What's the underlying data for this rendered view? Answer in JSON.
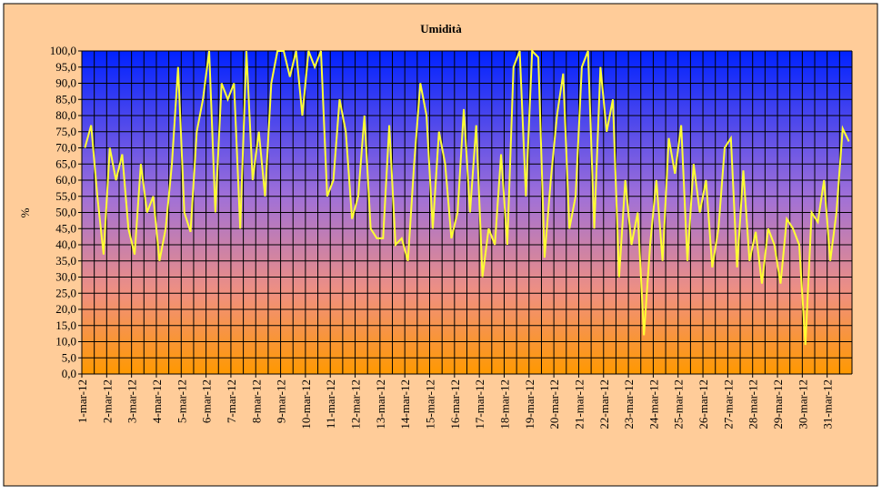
{
  "chart_data": {
    "type": "line",
    "title": "Umidità",
    "y_label": "%",
    "categories": [
      "1-mar-12",
      null,
      null,
      null,
      "2-mar-12",
      null,
      null,
      null,
      "3-mar-12",
      null,
      null,
      null,
      "4-mar-12",
      null,
      null,
      null,
      "5-mar-12",
      null,
      null,
      null,
      "6-mar-12",
      null,
      null,
      null,
      "7-mar-12",
      null,
      null,
      null,
      "8-mar-12",
      null,
      null,
      null,
      "9-mar-12",
      null,
      null,
      null,
      "10-mar-12",
      null,
      null,
      null,
      "11-mar-12",
      null,
      null,
      null,
      "12-mar-12",
      null,
      null,
      null,
      "13-mar-12",
      null,
      null,
      null,
      "14-mar-12",
      null,
      null,
      null,
      "15-mar-12",
      null,
      null,
      null,
      "16-mar-12",
      null,
      null,
      null,
      "17-mar-12",
      null,
      null,
      null,
      "18-mar-12",
      null,
      null,
      null,
      "19-mar-12",
      null,
      null,
      null,
      "20-mar-12",
      null,
      null,
      null,
      "21-mar-12",
      null,
      null,
      null,
      "22-mar-12",
      null,
      null,
      null,
      "23-mar-12",
      null,
      null,
      null,
      "24-mar-12",
      null,
      null,
      null,
      "25-mar-12",
      null,
      null,
      null,
      "26-mar-12",
      null,
      null,
      null,
      "27-mar-12",
      null,
      null,
      null,
      "28-mar-12",
      null,
      null,
      null,
      "29-mar-12",
      null,
      null,
      null,
      "30-mar-12",
      null,
      null,
      null,
      "31-mar-12",
      null,
      null,
      null
    ],
    "series": [
      {
        "name": "Umidità",
        "color": "#ffff33",
        "values": [
          70,
          77,
          55,
          37,
          70,
          60,
          68,
          45,
          37,
          65,
          50,
          55,
          35,
          45,
          65,
          95,
          50,
          44,
          75,
          85,
          100,
          50,
          90,
          85,
          90,
          45,
          100,
          60,
          75,
          55,
          90,
          100,
          100,
          92,
          100,
          80,
          100,
          95,
          100,
          55,
          60,
          85,
          75,
          48,
          55,
          80,
          45,
          42,
          42,
          77,
          40,
          42,
          35,
          65,
          90,
          80,
          45,
          75,
          65,
          42,
          50,
          82,
          50,
          77,
          30,
          45,
          40,
          68,
          40,
          95,
          100,
          55,
          100,
          98,
          36,
          60,
          80,
          93,
          45,
          55,
          95,
          100,
          45,
          95,
          75,
          85,
          30,
          60,
          40,
          50,
          12,
          40,
          60,
          35,
          73,
          62,
          77,
          35,
          65,
          50,
          60,
          33,
          45,
          70,
          73,
          33,
          63,
          35,
          44,
          28,
          45,
          40,
          28,
          48,
          45,
          40,
          9,
          50,
          47,
          60,
          35,
          50,
          76,
          72
        ]
      }
    ],
    "ylim": [
      0,
      100
    ],
    "yticks": [
      {
        "value": 0,
        "label": "0,0"
      },
      {
        "value": 5,
        "label": "5,0"
      },
      {
        "value": 10,
        "label": "10,0"
      },
      {
        "value": 15,
        "label": "15,0"
      },
      {
        "value": 20,
        "label": "20,0"
      },
      {
        "value": 25,
        "label": "25,0"
      },
      {
        "value": 30,
        "label": "30,0"
      },
      {
        "value": 35,
        "label": "35,0"
      },
      {
        "value": 40,
        "label": "40,0"
      },
      {
        "value": 45,
        "label": "45,0"
      },
      {
        "value": 50,
        "label": "50,0"
      },
      {
        "value": 55,
        "label": "55,0"
      },
      {
        "value": 60,
        "label": "60,0"
      },
      {
        "value": 65,
        "label": "65,0"
      },
      {
        "value": 70,
        "label": "70,0"
      },
      {
        "value": 75,
        "label": "75,0"
      },
      {
        "value": 80,
        "label": "80,0"
      },
      {
        "value": 85,
        "label": "85,0"
      },
      {
        "value": 90,
        "label": "90,0"
      },
      {
        "value": 95,
        "label": "95,0"
      },
      {
        "value": 100,
        "label": "100,0"
      }
    ],
    "grid": true
  }
}
